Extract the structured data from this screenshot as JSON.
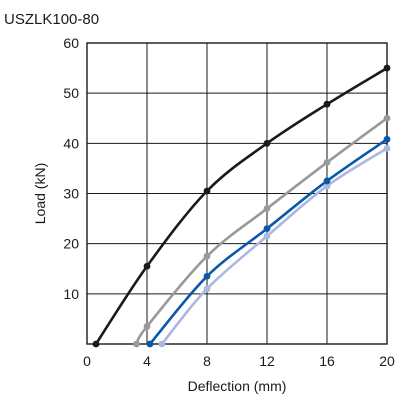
{
  "chart_data": {
    "type": "line",
    "title": "USZLK100-80",
    "xlabel": "Deflection (mm)",
    "ylabel": "Load (kN)",
    "xlim": [
      0,
      20
    ],
    "ylim": [
      0,
      60
    ],
    "x_ticks": [
      0,
      4,
      8,
      12,
      16,
      20
    ],
    "y_ticks": [
      10,
      20,
      30,
      40,
      50,
      60
    ],
    "grid": true,
    "legend": "none",
    "series": [
      {
        "color": "#1a1a1a",
        "points": [
          [
            0.6,
            0
          ],
          [
            4,
            15.5
          ],
          [
            8,
            30.5
          ],
          [
            12,
            40
          ],
          [
            16,
            47.8
          ],
          [
            20,
            55
          ]
        ],
        "markers": [
          [
            0.6,
            0
          ],
          [
            4,
            15.5
          ],
          [
            8,
            30.5
          ],
          [
            12,
            40
          ],
          [
            16,
            47.8
          ],
          [
            20,
            55
          ]
        ]
      },
      {
        "color": "#999999",
        "points": [
          [
            3.3,
            0
          ],
          [
            4,
            3.5
          ],
          [
            8,
            17.5
          ],
          [
            12,
            27
          ],
          [
            16,
            36.2
          ],
          [
            20,
            45
          ]
        ],
        "markers": [
          [
            3.3,
            0
          ],
          [
            4,
            3.5
          ],
          [
            8,
            17.5
          ],
          [
            12,
            27
          ],
          [
            16,
            36.2
          ],
          [
            20,
            45
          ]
        ]
      },
      {
        "color": "#aab8e2",
        "points": [
          [
            5,
            0
          ],
          [
            8,
            11
          ],
          [
            12,
            21.5
          ],
          [
            16,
            31.5
          ],
          [
            20,
            39
          ]
        ],
        "markers": [
          [
            5,
            0
          ],
          [
            8,
            11
          ],
          [
            12,
            21.5
          ],
          [
            16,
            31.5
          ],
          [
            20,
            39
          ]
        ]
      },
      {
        "color": "#0a58a8",
        "points": [
          [
            4.2,
            0
          ],
          [
            8,
            13.5
          ],
          [
            12,
            23
          ],
          [
            16,
            32.5
          ],
          [
            20,
            40.8
          ]
        ],
        "markers": [
          [
            4.2,
            0
          ],
          [
            8,
            13.5
          ],
          [
            12,
            23
          ],
          [
            16,
            32.5
          ],
          [
            20,
            40.8
          ]
        ]
      }
    ]
  }
}
